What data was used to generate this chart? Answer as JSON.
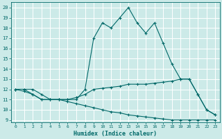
{
  "xlabel": "Humidex (Indice chaleur)",
  "background_color": "#cceae8",
  "grid_color": "#ffffff",
  "line_color": "#006868",
  "xlim": [
    -0.5,
    23.5
  ],
  "ylim": [
    8.8,
    20.5
  ],
  "yticks": [
    9,
    10,
    11,
    12,
    13,
    14,
    15,
    16,
    17,
    18,
    19,
    20
  ],
  "xticks": [
    0,
    1,
    2,
    3,
    4,
    5,
    6,
    7,
    8,
    9,
    10,
    11,
    12,
    13,
    14,
    15,
    16,
    17,
    18,
    19,
    20,
    21,
    22,
    23
  ],
  "series1_x": [
    0,
    1,
    2,
    3,
    4,
    5,
    6,
    7,
    8,
    9,
    10,
    11,
    12,
    13,
    14,
    15,
    16,
    17,
    18,
    19,
    20,
    21,
    22,
    23
  ],
  "series1_y": [
    12.0,
    12.0,
    12.0,
    11.5,
    11.0,
    11.0,
    11.0,
    11.0,
    12.0,
    17.0,
    18.5,
    18.0,
    19.0,
    20.0,
    18.5,
    17.5,
    18.5,
    16.5,
    14.5,
    13.0,
    13.0,
    11.5,
    10.0,
    9.5
  ],
  "series2_x": [
    0,
    1,
    2,
    3,
    4,
    5,
    6,
    7,
    8,
    9,
    10,
    11,
    12,
    13,
    14,
    15,
    16,
    17,
    18,
    19,
    20,
    21,
    22,
    23
  ],
  "series2_y": [
    12.0,
    12.0,
    11.5,
    11.0,
    11.0,
    11.0,
    11.0,
    11.2,
    11.5,
    12.0,
    12.1,
    12.2,
    12.3,
    12.5,
    12.5,
    12.5,
    12.6,
    12.7,
    12.8,
    13.0,
    13.0,
    11.5,
    10.0,
    9.5
  ],
  "series3_x": [
    0,
    1,
    2,
    3,
    4,
    5,
    6,
    7,
    8,
    9,
    10,
    11,
    12,
    13,
    14,
    15,
    16,
    17,
    18,
    19,
    20,
    21,
    22,
    23
  ],
  "series3_y": [
    12.0,
    11.8,
    11.5,
    11.0,
    11.0,
    11.0,
    10.8,
    10.6,
    10.4,
    10.2,
    10.0,
    9.8,
    9.7,
    9.5,
    9.4,
    9.3,
    9.2,
    9.1,
    9.0,
    9.0,
    9.0,
    9.0,
    9.0,
    9.0
  ]
}
